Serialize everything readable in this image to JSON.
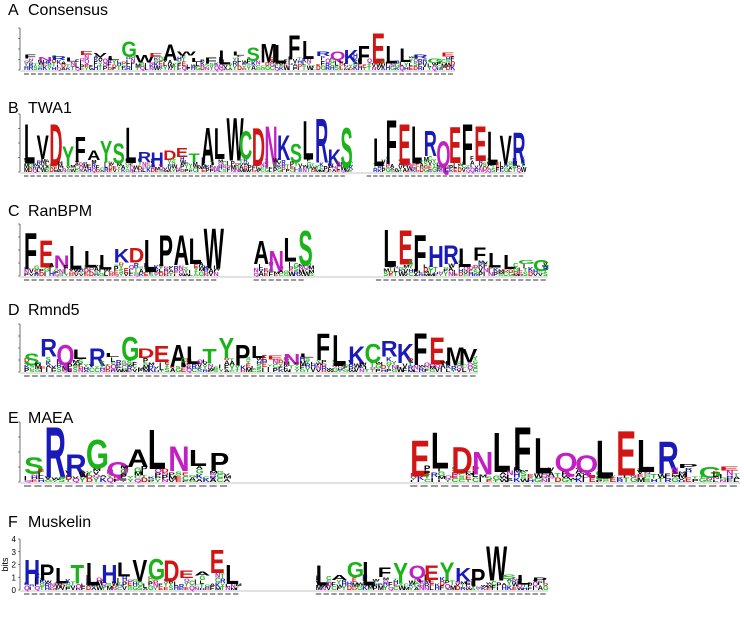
{
  "colors": {
    "hydrophobic": "#000000",
    "polar": "#18b418",
    "basic": "#1a1ab8",
    "acidic": "#d11414",
    "amide": "#c41fc4",
    "other": "#777777"
  },
  "panels": [
    {
      "letter": "A",
      "name": "Consensus",
      "tall": [
        {
          "c": "F",
          "h": 0.25
        },
        {
          "c": "N",
          "h": 0.3
        },
        {
          "c": "R",
          "h": 0.28
        },
        {
          "c": "L",
          "h": 0.25
        },
        {
          "c": "E",
          "h": 0.3
        },
        {
          "c": "V",
          "h": 0.32
        },
        {
          "c": "L",
          "h": 0.3
        },
        {
          "c": "G",
          "h": 0.68
        },
        {
          "c": "W",
          "h": 0.36
        },
        {
          "c": "E",
          "h": 0.4
        },
        {
          "c": "A",
          "h": 0.62
        },
        {
          "c": "W",
          "h": 0.28
        },
        {
          "c": "L",
          "h": 0.28
        },
        {
          "c": "F",
          "h": 0.3
        },
        {
          "c": "L",
          "h": 0.48
        },
        {
          "c": "L",
          "h": 0.4
        },
        {
          "c": "S",
          "h": 0.55
        },
        {
          "c": "M",
          "h": 0.65
        },
        {
          "c": "L",
          "h": 0.62
        },
        {
          "c": "F",
          "h": 0.85
        },
        {
          "c": "L",
          "h": 0.7
        },
        {
          "c": "R",
          "h": 0.45
        },
        {
          "c": "Q",
          "h": 0.45
        },
        {
          "c": "K",
          "h": 0.5
        },
        {
          "c": "F",
          "h": 0.58
        },
        {
          "c": "E",
          "h": 0.9
        },
        {
          "c": "L",
          "h": 0.58
        },
        {
          "c": "L",
          "h": 0.52
        },
        {
          "c": "R",
          "h": 0.3
        },
        {
          "c": "G",
          "h": 0.28
        },
        {
          "c": "E",
          "h": 0.35
        }
      ]
    },
    {
      "letter": "B",
      "name": "TWA1",
      "tall": [
        {
          "c": "L",
          "h": 0.85
        },
        {
          "c": "V",
          "h": 0.65
        },
        {
          "c": "D",
          "h": 0.85
        },
        {
          "c": "Y",
          "h": 0.45
        },
        {
          "c": "F",
          "h": 0.62
        },
        {
          "c": "A",
          "h": 0.38
        },
        {
          "c": "Y",
          "h": 0.55
        },
        {
          "c": "S",
          "h": 0.5
        },
        {
          "c": "L",
          "h": 0.78
        },
        {
          "c": "R",
          "h": 0.35
        },
        {
          "c": "H",
          "h": 0.35
        },
        {
          "c": "D",
          "h": 0.38
        },
        {
          "c": "E",
          "h": 0.42
        },
        {
          "c": "T",
          "h": 0.32
        },
        {
          "c": "A",
          "h": 0.78
        },
        {
          "c": "L",
          "h": 0.78
        },
        {
          "c": "W",
          "h": 0.95
        },
        {
          "c": "C",
          "h": 0.72
        },
        {
          "c": "D",
          "h": 0.78
        },
        {
          "c": "N",
          "h": 0.82
        },
        {
          "c": "K",
          "h": 0.65
        },
        {
          "c": "S",
          "h": 0.5
        },
        {
          "c": "L",
          "h": 0.9
        },
        {
          "c": "R",
          "h": 0.95
        },
        {
          "c": "K",
          "h": 0.4
        },
        {
          "c": "S",
          "h": 0.78
        },
        {
          "c": "L",
          "h": 0.6
        },
        {
          "c": "F",
          "h": 0.92
        },
        {
          "c": "E",
          "h": 0.85
        },
        {
          "c": "L",
          "h": 0.82
        },
        {
          "c": "R",
          "h": 0.72
        },
        {
          "c": "Q",
          "h": 0.55
        },
        {
          "c": "E",
          "h": 0.8
        },
        {
          "c": "F",
          "h": 0.85
        },
        {
          "c": "E",
          "h": 0.82
        },
        {
          "c": "L",
          "h": 0.72
        },
        {
          "c": "V",
          "h": 0.65
        },
        {
          "c": "R",
          "h": 0.7
        }
      ]
    },
    {
      "letter": "C",
      "name": "RanBPM",
      "tall": [
        {
          "c": "F",
          "h": 0.85
        },
        {
          "c": "E",
          "h": 0.7
        },
        {
          "c": "N",
          "h": 0.4
        },
        {
          "c": "L",
          "h": 0.6
        },
        {
          "c": "L",
          "h": 0.5
        },
        {
          "c": "L",
          "h": 0.42
        },
        {
          "c": "K",
          "h": 0.52
        },
        {
          "c": "D",
          "h": 0.55
        },
        {
          "c": "L",
          "h": 0.72
        },
        {
          "c": "P",
          "h": 0.8
        },
        {
          "c": "A",
          "h": 0.8
        },
        {
          "c": "L",
          "h": 0.75
        },
        {
          "c": "W",
          "h": 0.95
        },
        {
          "c": "A",
          "h": 0.7
        },
        {
          "c": "N",
          "h": 0.5
        },
        {
          "c": "L",
          "h": 0.75
        },
        {
          "c": "S",
          "h": 0.9
        },
        {
          "c": "L",
          "h": 0.92
        },
        {
          "c": "E",
          "h": 0.9
        },
        {
          "c": "F",
          "h": 0.82
        },
        {
          "c": "H",
          "h": 0.6
        },
        {
          "c": "R",
          "h": 0.6
        },
        {
          "c": "L",
          "h": 0.55
        },
        {
          "c": "F",
          "h": 0.55
        },
        {
          "c": "L",
          "h": 0.45
        },
        {
          "c": "L",
          "h": 0.42
        },
        {
          "c": "G",
          "h": 0.3
        },
        {
          "c": "G",
          "h": 0.32
        }
      ]
    },
    {
      "letter": "D",
      "name": "Rmnd5",
      "tall": [
        {
          "c": "S",
          "h": 0.4
        },
        {
          "c": "R",
          "h": 0.7
        },
        {
          "c": "Q",
          "h": 0.58
        },
        {
          "c": "L",
          "h": 0.48
        },
        {
          "c": "R",
          "h": 0.5
        },
        {
          "c": "L",
          "h": 0.35
        },
        {
          "c": "G",
          "h": 0.75
        },
        {
          "c": "D",
          "h": 0.5
        },
        {
          "c": "E",
          "h": 0.55
        },
        {
          "c": "A",
          "h": 0.58
        },
        {
          "c": "L",
          "h": 0.55
        },
        {
          "c": "T",
          "h": 0.5
        },
        {
          "c": "Y",
          "h": 0.72
        },
        {
          "c": "P",
          "h": 0.58
        },
        {
          "c": "L",
          "h": 0.55
        },
        {
          "c": "E",
          "h": 0.3
        },
        {
          "c": "N",
          "h": 0.38
        },
        {
          "c": "L",
          "h": 0.35
        },
        {
          "c": "F",
          "h": 0.82
        },
        {
          "c": "L",
          "h": 0.8
        },
        {
          "c": "K",
          "h": 0.55
        },
        {
          "c": "C",
          "h": 0.6
        },
        {
          "c": "R",
          "h": 0.65
        },
        {
          "c": "K",
          "h": 0.6
        },
        {
          "c": "F",
          "h": 0.82
        },
        {
          "c": "E",
          "h": 0.75
        },
        {
          "c": "M",
          "h": 0.52
        },
        {
          "c": "V",
          "h": 0.48
        }
      ]
    },
    {
      "letter": "E",
      "name": "MAEA",
      "tall": [
        {
          "c": "S",
          "h": 0.42
        },
        {
          "c": "R",
          "h": 0.95
        },
        {
          "c": "R",
          "h": 0.48
        },
        {
          "c": "G",
          "h": 0.72
        },
        {
          "c": "Q",
          "h": 0.35
        },
        {
          "c": "A",
          "h": 0.55
        },
        {
          "c": "L",
          "h": 0.9
        },
        {
          "c": "N",
          "h": 0.6
        },
        {
          "c": "L",
          "h": 0.55
        },
        {
          "c": "P",
          "h": 0.5
        },
        {
          "c": "E",
          "h": 0.72
        },
        {
          "c": "L",
          "h": 0.85
        },
        {
          "c": "D",
          "h": 0.6
        },
        {
          "c": "N",
          "h": 0.52
        },
        {
          "c": "L",
          "h": 0.85
        },
        {
          "c": "F",
          "h": 0.95
        },
        {
          "c": "L",
          "h": 0.75
        },
        {
          "c": "Q",
          "h": 0.5
        },
        {
          "c": "Q",
          "h": 0.45
        },
        {
          "c": "L",
          "h": 0.72
        },
        {
          "c": "E",
          "h": 0.88
        },
        {
          "c": "L",
          "h": 0.72
        },
        {
          "c": "R",
          "h": 0.7
        },
        {
          "c": "P",
          "h": 0.2
        },
        {
          "c": "G",
          "h": 0.25
        },
        {
          "c": "E",
          "h": 0.25
        }
      ]
    },
    {
      "letter": "F",
      "name": "Muskelin",
      "ylabel": "bits",
      "ticks": [
        "0",
        "1",
        "2",
        "3",
        "4"
      ],
      "tall": [
        {
          "c": "H",
          "h": 0.6
        },
        {
          "c": "P",
          "h": 0.52
        },
        {
          "c": "L",
          "h": 0.45
        },
        {
          "c": "T",
          "h": 0.5
        },
        {
          "c": "L",
          "h": 0.55
        },
        {
          "c": "H",
          "h": 0.5
        },
        {
          "c": "L",
          "h": 0.55
        },
        {
          "c": "V",
          "h": 0.62
        },
        {
          "c": "G",
          "h": 0.62
        },
        {
          "c": "D",
          "h": 0.6
        },
        {
          "c": "E",
          "h": 0.38
        },
        {
          "c": "A",
          "h": 0.32
        },
        {
          "c": "E",
          "h": 0.8
        },
        {
          "c": "L",
          "h": 0.5
        },
        {
          "c": "L",
          "h": 0.5
        },
        {
          "c": "A",
          "h": 0.3
        },
        {
          "c": "G",
          "h": 0.55
        },
        {
          "c": "L",
          "h": 0.58
        },
        {
          "c": "F",
          "h": 0.45
        },
        {
          "c": "Y",
          "h": 0.55
        },
        {
          "c": "Q",
          "h": 0.48
        },
        {
          "c": "E",
          "h": 0.5
        },
        {
          "c": "Y",
          "h": 0.55
        },
        {
          "c": "K",
          "h": 0.45
        },
        {
          "c": "P",
          "h": 0.42
        },
        {
          "c": "W",
          "h": 0.88
        },
        {
          "c": "S",
          "h": 0.3
        },
        {
          "c": "L",
          "h": 0.3
        },
        {
          "c": "P",
          "h": 0.22
        }
      ]
    }
  ]
}
